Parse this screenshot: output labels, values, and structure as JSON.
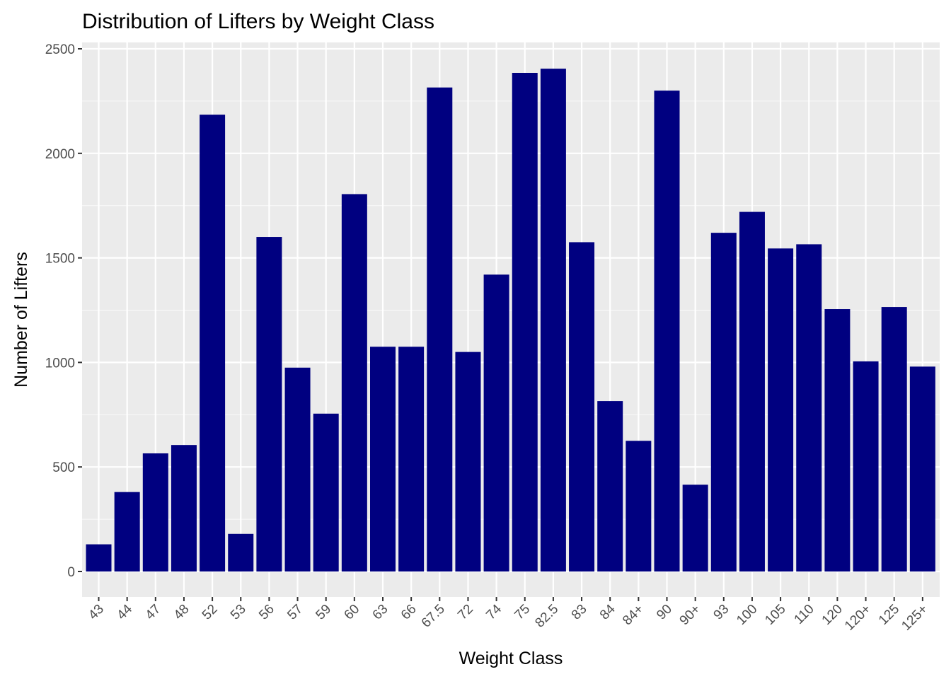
{
  "chart_data": {
    "type": "bar",
    "title": "Distribution of Lifters by Weight Class",
    "xlabel": "Weight Class",
    "ylabel": "Number of Lifters",
    "categories": [
      "43",
      "44",
      "47",
      "48",
      "52",
      "53",
      "56",
      "57",
      "59",
      "60",
      "63",
      "66",
      "67.5",
      "72",
      "74",
      "75",
      "82.5",
      "83",
      "84",
      "84+",
      "90",
      "90+",
      "93",
      "100",
      "105",
      "110",
      "120",
      "120+",
      "125",
      "125+"
    ],
    "values": [
      130,
      380,
      565,
      605,
      2185,
      180,
      1600,
      975,
      755,
      1805,
      1075,
      1075,
      2315,
      1050,
      1420,
      2385,
      2405,
      1575,
      815,
      625,
      2300,
      415,
      1620,
      1720,
      1545,
      1565,
      1255,
      1005,
      1265,
      980
    ],
    "yticks": [
      "0",
      "500",
      "1000",
      "1500",
      "2000",
      "2500"
    ],
    "ylim": [
      0,
      2500
    ],
    "grid": true,
    "legend": "none",
    "colors": {
      "bar": "#000080",
      "panel": "#ebebeb",
      "grid_major": "#ffffff",
      "grid_minor": "#f5f5f5"
    }
  }
}
